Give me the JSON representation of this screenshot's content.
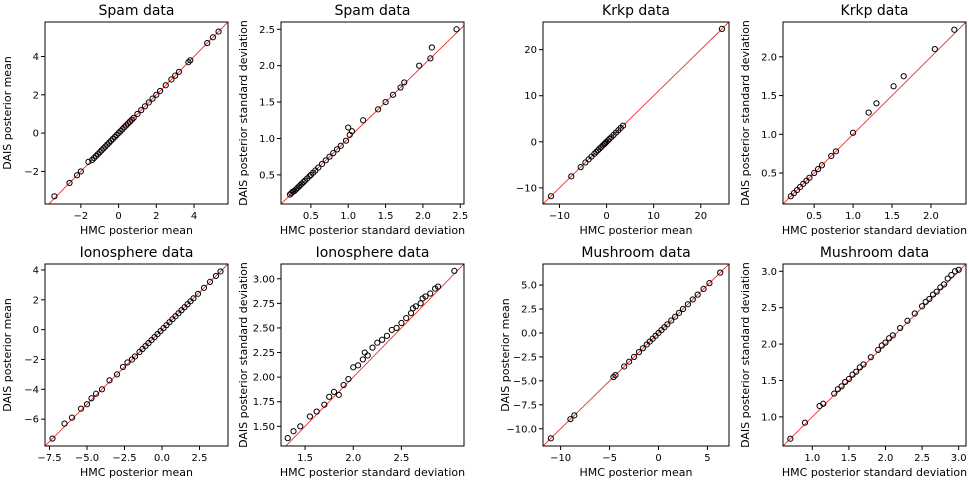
{
  "figure": {
    "description_colors": {
      "diagonal": "#e8302a",
      "points": "#000000"
    }
  },
  "chart_data": [
    {
      "type": "scatter",
      "title": "Spam data",
      "xlabel": "HMC posterior mean",
      "ylabel": "DAIS posterior mean",
      "xlim": [
        -3.9,
        5.8
      ],
      "ylim": [
        -3.7,
        5.8
      ],
      "xticks": [
        -2,
        0,
        2,
        4
      ],
      "yticks": [
        -2,
        0,
        2,
        4
      ],
      "points": [
        [
          -3.4,
          -3.3
        ],
        [
          -2.6,
          -2.6
        ],
        [
          -2.2,
          -2.2
        ],
        [
          -2.0,
          -2.0
        ],
        [
          -1.6,
          -1.5
        ],
        [
          -1.4,
          -1.4
        ],
        [
          -1.3,
          -1.3
        ],
        [
          -1.2,
          -1.2
        ],
        [
          -1.1,
          -1.1
        ],
        [
          -1.0,
          -1.0
        ],
        [
          -0.9,
          -0.9
        ],
        [
          -0.8,
          -0.8
        ],
        [
          -0.7,
          -0.7
        ],
        [
          -0.6,
          -0.6
        ],
        [
          -0.5,
          -0.5
        ],
        [
          -0.4,
          -0.4
        ],
        [
          -0.3,
          -0.3
        ],
        [
          -0.2,
          -0.2
        ],
        [
          -0.1,
          -0.1
        ],
        [
          0.0,
          0.0
        ],
        [
          0.1,
          0.1
        ],
        [
          0.2,
          0.2
        ],
        [
          0.3,
          0.3
        ],
        [
          0.4,
          0.4
        ],
        [
          0.5,
          0.5
        ],
        [
          0.6,
          0.6
        ],
        [
          0.7,
          0.7
        ],
        [
          0.8,
          0.8
        ],
        [
          1.0,
          1.0
        ],
        [
          1.2,
          1.2
        ],
        [
          1.4,
          1.4
        ],
        [
          1.6,
          1.6
        ],
        [
          1.8,
          1.8
        ],
        [
          2.0,
          2.0
        ],
        [
          2.2,
          2.2
        ],
        [
          2.5,
          2.5
        ],
        [
          2.8,
          2.8
        ],
        [
          3.0,
          3.0
        ],
        [
          3.2,
          3.2
        ],
        [
          3.7,
          3.7
        ],
        [
          3.8,
          3.8
        ],
        [
          4.7,
          4.7
        ],
        [
          5.0,
          5.0
        ],
        [
          5.3,
          5.3
        ]
      ]
    },
    {
      "type": "scatter",
      "title": "Spam data",
      "xlabel": "HMC posterior standard deviation",
      "ylabel": "DAIS posterior standard deviation",
      "xlim": [
        0.1,
        2.55
      ],
      "ylim": [
        0.1,
        2.6
      ],
      "xticks": [
        0.5,
        1.0,
        1.5,
        2.0,
        2.5
      ],
      "yticks": [
        0.5,
        1.0,
        1.5,
        2.0,
        2.5
      ],
      "points": [
        [
          0.22,
          0.23
        ],
        [
          0.24,
          0.25
        ],
        [
          0.26,
          0.27
        ],
        [
          0.28,
          0.28
        ],
        [
          0.3,
          0.3
        ],
        [
          0.32,
          0.32
        ],
        [
          0.34,
          0.34
        ],
        [
          0.36,
          0.36
        ],
        [
          0.38,
          0.38
        ],
        [
          0.4,
          0.4
        ],
        [
          0.42,
          0.42
        ],
        [
          0.45,
          0.45
        ],
        [
          0.48,
          0.48
        ],
        [
          0.5,
          0.5
        ],
        [
          0.53,
          0.53
        ],
        [
          0.56,
          0.56
        ],
        [
          0.6,
          0.6
        ],
        [
          0.65,
          0.65
        ],
        [
          0.7,
          0.7
        ],
        [
          0.75,
          0.75
        ],
        [
          0.8,
          0.8
        ],
        [
          0.85,
          0.85
        ],
        [
          0.9,
          0.9
        ],
        [
          0.97,
          0.97
        ],
        [
          1.0,
          1.15
        ],
        [
          1.02,
          1.05
        ],
        [
          1.05,
          1.1
        ],
        [
          1.2,
          1.25
        ],
        [
          1.4,
          1.4
        ],
        [
          1.5,
          1.5
        ],
        [
          1.6,
          1.6
        ],
        [
          1.7,
          1.7
        ],
        [
          1.75,
          1.77
        ],
        [
          1.95,
          2.0
        ],
        [
          2.1,
          2.1
        ],
        [
          2.12,
          2.25
        ],
        [
          2.45,
          2.5
        ]
      ]
    },
    {
      "type": "scatter",
      "title": "Krkp data",
      "xlabel": "HMC posterior mean",
      "ylabel": "",
      "xlim": [
        -13.5,
        26.0
      ],
      "ylim": [
        -13.5,
        26.0
      ],
      "xticks": [
        -10,
        0,
        10,
        20
      ],
      "yticks": [
        -10,
        0,
        10,
        20
      ],
      "points": [
        [
          -11.8,
          -11.8
        ],
        [
          -7.5,
          -7.5
        ],
        [
          -5.5,
          -5.5
        ],
        [
          -4.5,
          -4.5
        ],
        [
          -3.8,
          -3.8
        ],
        [
          -3.2,
          -3.2
        ],
        [
          -2.6,
          -2.6
        ],
        [
          -2.2,
          -2.2
        ],
        [
          -1.8,
          -1.8
        ],
        [
          -1.5,
          -1.5
        ],
        [
          -1.2,
          -1.2
        ],
        [
          -0.8,
          -0.8
        ],
        [
          -0.5,
          -0.5
        ],
        [
          -0.3,
          -0.3
        ],
        [
          0.0,
          0.0
        ],
        [
          0.3,
          0.3
        ],
        [
          0.6,
          0.6
        ],
        [
          1.0,
          1.0
        ],
        [
          1.5,
          1.5
        ],
        [
          2.0,
          2.0
        ],
        [
          2.5,
          2.5
        ],
        [
          3.0,
          3.0
        ],
        [
          3.5,
          3.5
        ],
        [
          24.5,
          24.5
        ]
      ]
    },
    {
      "type": "scatter",
      "title": "Krkp data",
      "xlabel": "HMC posterior standard deviation",
      "ylabel": "DAIS posterior standard deviation",
      "xlim": [
        0.1,
        2.45
      ],
      "ylim": [
        0.1,
        2.45
      ],
      "xticks": [
        0.5,
        1.0,
        1.5,
        2.0
      ],
      "yticks": [
        0.5,
        1.0,
        1.5,
        2.0
      ],
      "points": [
        [
          0.2,
          0.2
        ],
        [
          0.24,
          0.24
        ],
        [
          0.28,
          0.28
        ],
        [
          0.32,
          0.32
        ],
        [
          0.36,
          0.36
        ],
        [
          0.4,
          0.4
        ],
        [
          0.44,
          0.44
        ],
        [
          0.5,
          0.5
        ],
        [
          0.55,
          0.55
        ],
        [
          0.6,
          0.6
        ],
        [
          0.72,
          0.72
        ],
        [
          0.78,
          0.78
        ],
        [
          1.0,
          1.02
        ],
        [
          1.2,
          1.28
        ],
        [
          1.3,
          1.4
        ],
        [
          1.52,
          1.62
        ],
        [
          1.65,
          1.75
        ],
        [
          2.05,
          2.1
        ],
        [
          2.3,
          2.35
        ]
      ]
    },
    {
      "type": "scatter",
      "title": "Ionosphere data",
      "xlabel": "HMC posterior mean",
      "ylabel": "DAIS posterior mean",
      "xlim": [
        -7.8,
        4.4
      ],
      "ylim": [
        -7.8,
        4.4
      ],
      "xticks": [
        -7.5,
        -5.0,
        -2.5,
        0.0,
        2.5
      ],
      "yticks": [
        -6,
        -4,
        -2,
        0,
        2,
        4
      ],
      "points": [
        [
          -7.3,
          -7.3
        ],
        [
          -6.5,
          -6.3
        ],
        [
          -6.0,
          -5.9
        ],
        [
          -5.4,
          -5.3
        ],
        [
          -5.0,
          -5.0
        ],
        [
          -4.7,
          -4.6
        ],
        [
          -4.4,
          -4.3
        ],
        [
          -4.0,
          -4.0
        ],
        [
          -3.5,
          -3.4
        ],
        [
          -3.0,
          -3.0
        ],
        [
          -2.6,
          -2.5
        ],
        [
          -2.3,
          -2.2
        ],
        [
          -2.0,
          -2.0
        ],
        [
          -1.8,
          -1.8
        ],
        [
          -1.5,
          -1.5
        ],
        [
          -1.3,
          -1.3
        ],
        [
          -1.1,
          -1.1
        ],
        [
          -0.9,
          -0.9
        ],
        [
          -0.7,
          -0.7
        ],
        [
          -0.5,
          -0.5
        ],
        [
          -0.3,
          -0.3
        ],
        [
          -0.1,
          -0.1
        ],
        [
          0.1,
          0.1
        ],
        [
          0.3,
          0.3
        ],
        [
          0.5,
          0.5
        ],
        [
          0.7,
          0.7
        ],
        [
          0.9,
          0.9
        ],
        [
          1.1,
          1.1
        ],
        [
          1.3,
          1.3
        ],
        [
          1.5,
          1.5
        ],
        [
          1.7,
          1.7
        ],
        [
          1.9,
          1.9
        ],
        [
          2.1,
          2.1
        ],
        [
          2.4,
          2.4
        ],
        [
          2.8,
          2.8
        ],
        [
          3.2,
          3.2
        ],
        [
          3.6,
          3.6
        ],
        [
          3.9,
          3.9
        ]
      ]
    },
    {
      "type": "scatter",
      "title": "Ionosphere data",
      "xlabel": "HMC posterior standard deviation",
      "ylabel": "DAIS posterior standard deviation",
      "xlim": [
        1.25,
        3.15
      ],
      "ylim": [
        1.3,
        3.15
      ],
      "xticks": [
        1.5,
        2.0,
        2.5
      ],
      "yticks": [
        1.5,
        1.75,
        2.0,
        2.25,
        2.5,
        2.75,
        3.0
      ],
      "points": [
        [
          1.32,
          1.38
        ],
        [
          1.38,
          1.45
        ],
        [
          1.45,
          1.5
        ],
        [
          1.55,
          1.6
        ],
        [
          1.62,
          1.65
        ],
        [
          1.7,
          1.72
        ],
        [
          1.75,
          1.8
        ],
        [
          1.8,
          1.85
        ],
        [
          1.85,
          1.82
        ],
        [
          1.9,
          1.92
        ],
        [
          1.95,
          1.98
        ],
        [
          2.0,
          2.1
        ],
        [
          2.05,
          2.12
        ],
        [
          2.1,
          2.18
        ],
        [
          2.12,
          2.25
        ],
        [
          2.15,
          2.22
        ],
        [
          2.2,
          2.3
        ],
        [
          2.25,
          2.35
        ],
        [
          2.3,
          2.38
        ],
        [
          2.35,
          2.42
        ],
        [
          2.4,
          2.48
        ],
        [
          2.45,
          2.5
        ],
        [
          2.5,
          2.55
        ],
        [
          2.55,
          2.6
        ],
        [
          2.6,
          2.65
        ],
        [
          2.62,
          2.7
        ],
        [
          2.65,
          2.72
        ],
        [
          2.7,
          2.75
        ],
        [
          2.72,
          2.8
        ],
        [
          2.75,
          2.82
        ],
        [
          2.8,
          2.85
        ],
        [
          2.85,
          2.9
        ],
        [
          2.88,
          2.92
        ],
        [
          3.05,
          3.08
        ]
      ]
    },
    {
      "type": "scatter",
      "title": "Mushroom data",
      "xlabel": "HMC posterior mean",
      "ylabel": "DAIS posterior mean",
      "xlim": [
        -11.8,
        7.2
      ],
      "ylim": [
        -11.8,
        7.2
      ],
      "xticks": [
        -10,
        -5,
        0,
        5
      ],
      "yticks": [
        -10.0,
        -7.5,
        -5.0,
        -2.5,
        0.0,
        2.5,
        5.0
      ],
      "points": [
        [
          -11.0,
          -11.0
        ],
        [
          -9.0,
          -9.0
        ],
        [
          -8.6,
          -8.6
        ],
        [
          -4.6,
          -4.6
        ],
        [
          -4.4,
          -4.4
        ],
        [
          -3.5,
          -3.5
        ],
        [
          -3.0,
          -3.0
        ],
        [
          -2.5,
          -2.5
        ],
        [
          -2.0,
          -2.0
        ],
        [
          -1.6,
          -1.6
        ],
        [
          -1.2,
          -1.2
        ],
        [
          -0.9,
          -0.9
        ],
        [
          -0.6,
          -0.6
        ],
        [
          -0.3,
          -0.3
        ],
        [
          0.0,
          0.0
        ],
        [
          0.3,
          0.3
        ],
        [
          0.6,
          0.6
        ],
        [
          0.9,
          0.9
        ],
        [
          1.3,
          1.3
        ],
        [
          1.7,
          1.7
        ],
        [
          2.1,
          2.1
        ],
        [
          2.5,
          2.5
        ],
        [
          3.0,
          3.0
        ],
        [
          3.5,
          3.5
        ],
        [
          4.0,
          4.0
        ],
        [
          4.6,
          4.6
        ],
        [
          5.2,
          5.2
        ],
        [
          6.3,
          6.3
        ]
      ]
    },
    {
      "type": "scatter",
      "title": "Mushroom data",
      "xlabel": "HMC posterior standard deviation",
      "ylabel": "DAIS posterior standard deviation",
      "xlim": [
        0.6,
        3.1
      ],
      "ylim": [
        0.6,
        3.1
      ],
      "xticks": [
        1.0,
        1.5,
        2.0,
        2.5,
        3.0
      ],
      "yticks": [
        1.0,
        1.5,
        2.0,
        2.5,
        3.0
      ],
      "points": [
        [
          0.7,
          0.7
        ],
        [
          0.9,
          0.92
        ],
        [
          1.1,
          1.15
        ],
        [
          1.15,
          1.18
        ],
        [
          1.3,
          1.32
        ],
        [
          1.35,
          1.38
        ],
        [
          1.4,
          1.42
        ],
        [
          1.45,
          1.48
        ],
        [
          1.5,
          1.52
        ],
        [
          1.55,
          1.58
        ],
        [
          1.6,
          1.62
        ],
        [
          1.65,
          1.68
        ],
        [
          1.7,
          1.72
        ],
        [
          1.8,
          1.82
        ],
        [
          1.9,
          1.92
        ],
        [
          1.95,
          1.98
        ],
        [
          2.0,
          2.02
        ],
        [
          2.05,
          2.08
        ],
        [
          2.1,
          2.12
        ],
        [
          2.2,
          2.22
        ],
        [
          2.3,
          2.32
        ],
        [
          2.4,
          2.42
        ],
        [
          2.5,
          2.52
        ],
        [
          2.55,
          2.58
        ],
        [
          2.6,
          2.62
        ],
        [
          2.65,
          2.68
        ],
        [
          2.7,
          2.72
        ],
        [
          2.75,
          2.78
        ],
        [
          2.8,
          2.82
        ],
        [
          2.85,
          2.9
        ],
        [
          2.9,
          2.95
        ],
        [
          2.95,
          3.0
        ],
        [
          3.0,
          3.02
        ]
      ]
    }
  ]
}
